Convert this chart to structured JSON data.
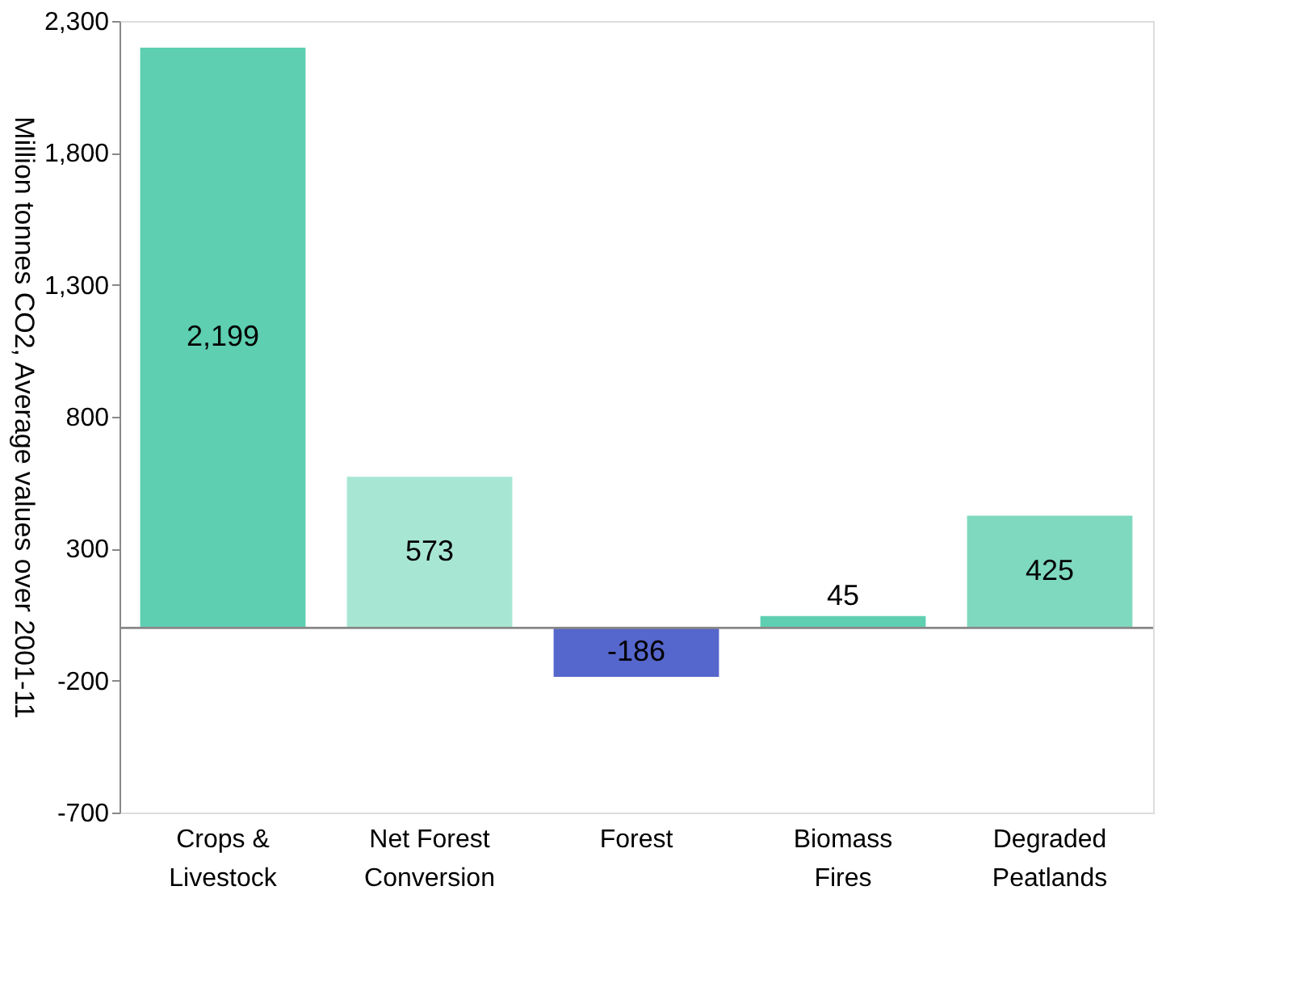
{
  "chart_data": {
    "type": "bar",
    "ylabel": "Million tonnes CO2, Average values over 2001-11",
    "categories": [
      "Crops & Livestock",
      "Net Forest Conversion",
      "Forest",
      "Biomass Fires",
      "Degraded Peatlands"
    ],
    "values": [
      2199,
      573,
      -186,
      45,
      425
    ],
    "colors": [
      "#5ecfb1",
      "#a8e6d4",
      "#5566cc",
      "#5ecfb1",
      "#7fd9bf"
    ],
    "value_labels": [
      "2,199",
      "573",
      "-186",
      "45",
      "425"
    ],
    "ylim": [
      -700,
      2300
    ],
    "yticks": [
      {
        "value": -700,
        "label": "-700"
      },
      {
        "value": -200,
        "label": "-200"
      },
      {
        "value": 300,
        "label": "300"
      },
      {
        "value": 800,
        "label": "800"
      },
      {
        "value": 1300,
        "label": "1,300"
      },
      {
        "value": 1800,
        "label": "1,800"
      },
      {
        "value": 2300,
        "label": "2,300"
      }
    ],
    "grid": false
  }
}
